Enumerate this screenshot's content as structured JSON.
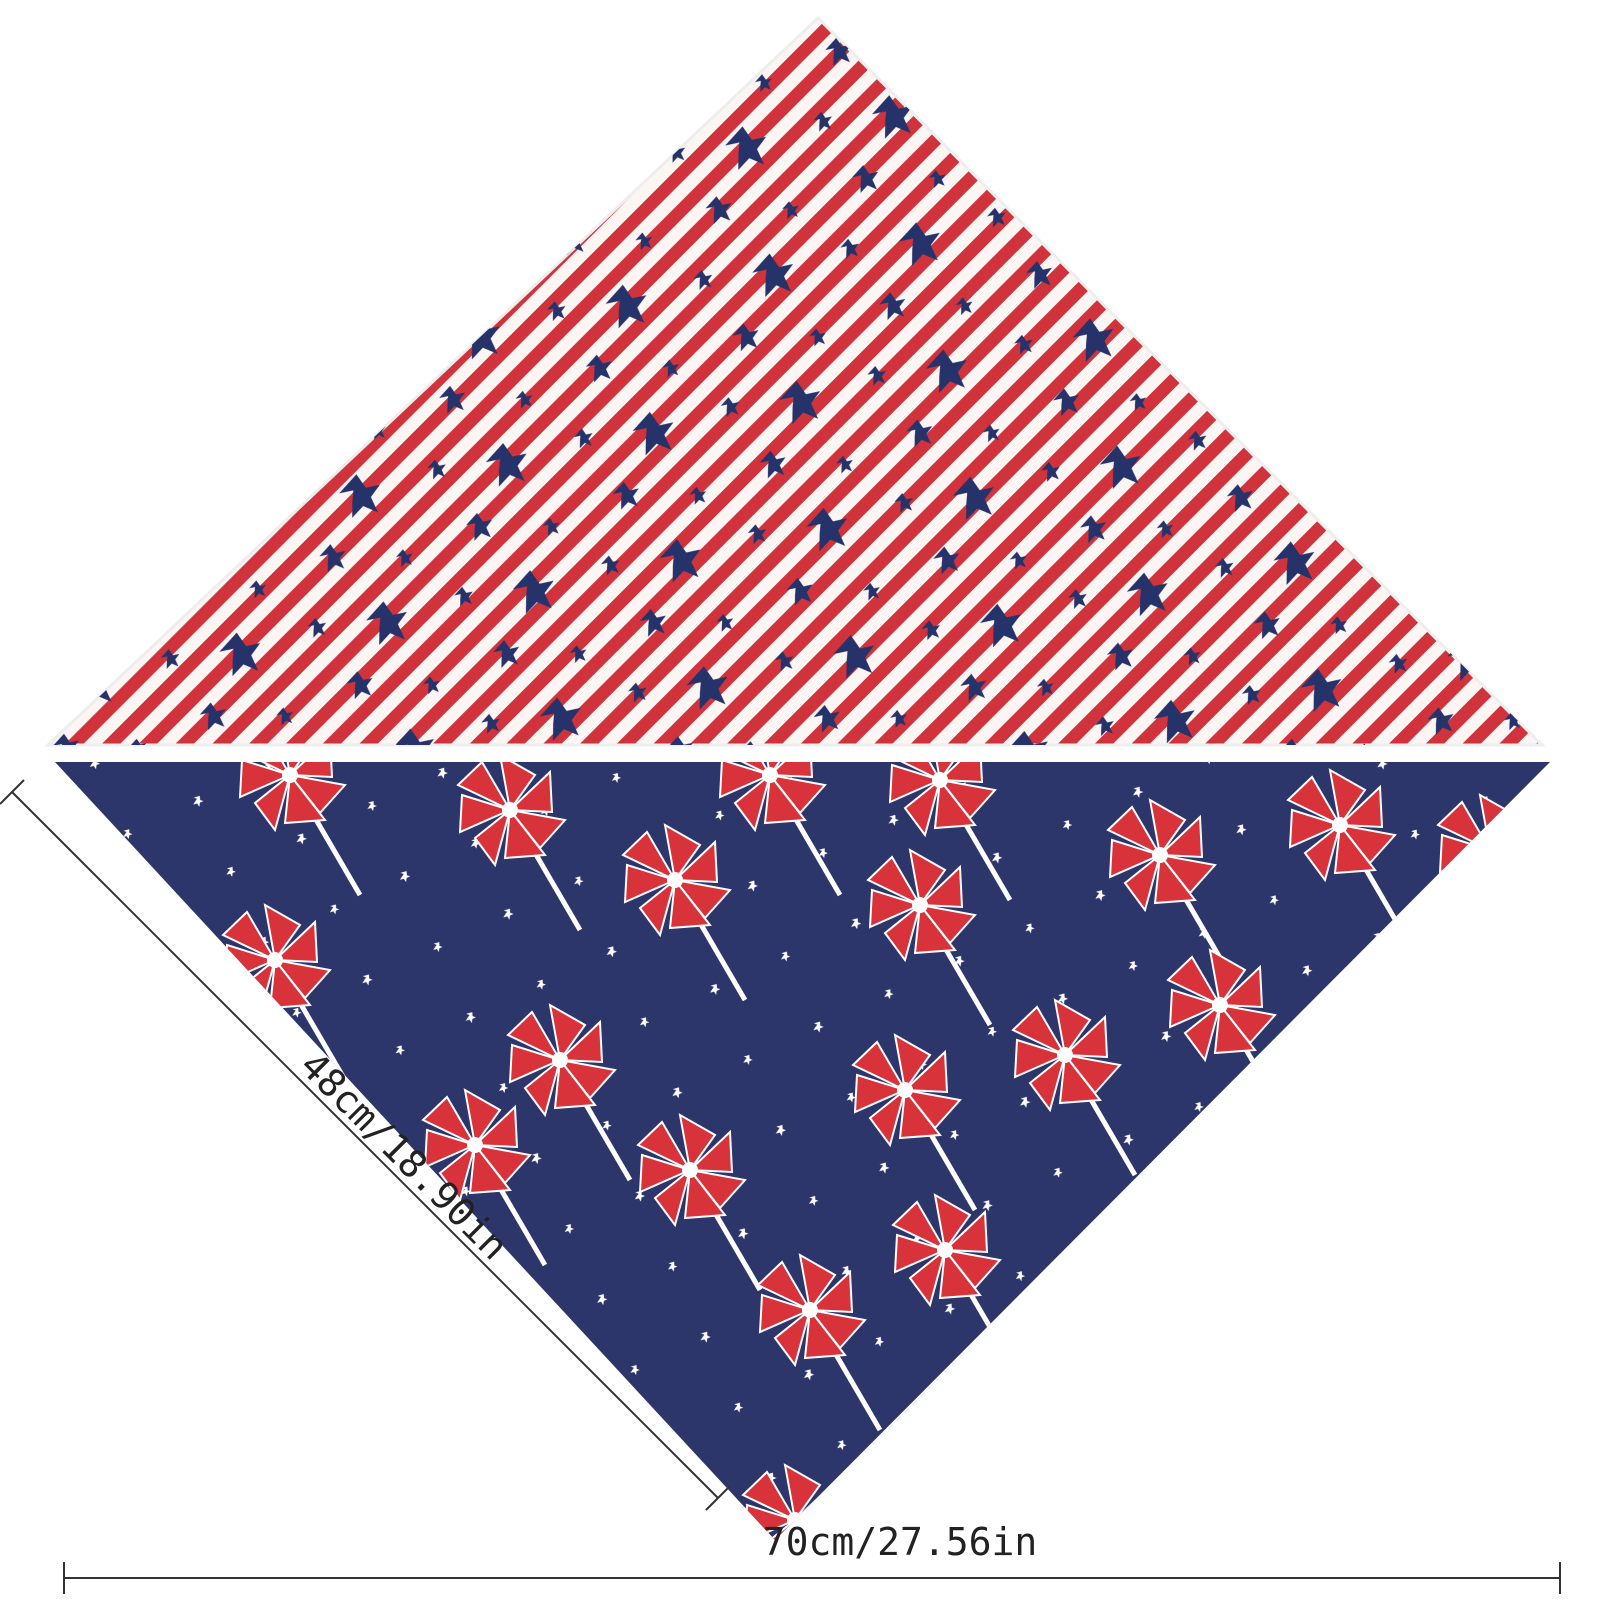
{
  "dimensions": {
    "side": "48cm/18.90in",
    "width": "70cm/27.56in"
  }
}
